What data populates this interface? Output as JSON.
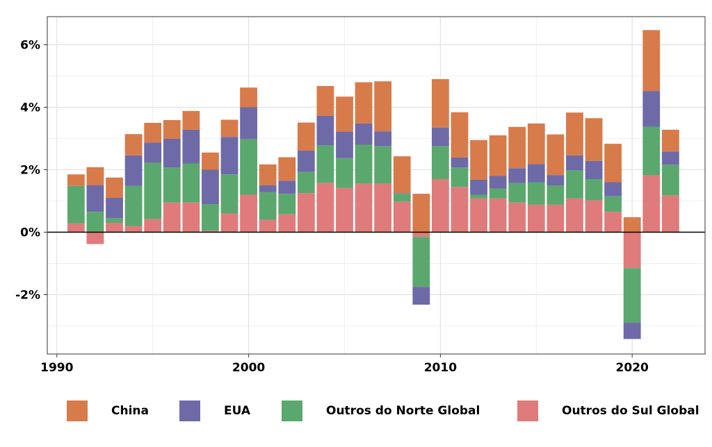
{
  "chart_data": {
    "type": "bar",
    "stacked": true,
    "title": "",
    "xlabel": "",
    "ylabel": "",
    "x": [
      1991,
      1992,
      1993,
      1994,
      1995,
      1996,
      1997,
      1998,
      1999,
      2000,
      2001,
      2002,
      2003,
      2004,
      2005,
      2006,
      2007,
      2008,
      2009,
      2010,
      2011,
      2012,
      2013,
      2014,
      2015,
      2016,
      2017,
      2018,
      2019,
      2020,
      2021,
      2022
    ],
    "x_ticks": [
      1990,
      2000,
      2010,
      2020
    ],
    "x_tick_labels": [
      "1990",
      "2000",
      "2010",
      "2020"
    ],
    "xlim": [
      1989.5,
      2023.8
    ],
    "y_ticks": [
      -2,
      0,
      2,
      4,
      6
    ],
    "y_tick_labels": [
      "-2%",
      "0%",
      "2%",
      "4%",
      "6%"
    ],
    "ylim": [
      -3.9,
      6.9
    ],
    "grid": true,
    "legend_position": "bottom",
    "series": [
      {
        "name": "Outros do Sul Global",
        "color": "#e07b7b",
        "values": [
          0.28,
          -0.38,
          0.3,
          0.2,
          0.42,
          0.95,
          0.95,
          0.05,
          0.6,
          1.2,
          0.4,
          0.58,
          1.25,
          1.58,
          1.42,
          1.55,
          1.55,
          0.98,
          -0.15,
          1.7,
          1.45,
          1.08,
          1.08,
          0.95,
          0.88,
          0.88,
          1.08,
          1.02,
          0.65,
          -1.15,
          1.82,
          1.18
        ]
      },
      {
        "name": "Outros do Norte Global",
        "color": "#5ba86e",
        "values": [
          1.2,
          0.65,
          0.15,
          1.28,
          1.8,
          1.12,
          1.25,
          0.85,
          1.25,
          1.78,
          0.88,
          0.65,
          0.68,
          1.2,
          0.95,
          1.25,
          1.2,
          0.25,
          -1.6,
          1.05,
          0.62,
          0.12,
          0.32,
          0.62,
          0.72,
          0.62,
          0.9,
          0.68,
          0.5,
          -1.75,
          1.55,
          0.98
        ]
      },
      {
        "name": "EUA",
        "color": "#6e6aa8",
        "values": [
          0.0,
          0.85,
          0.65,
          0.98,
          0.65,
          0.92,
          1.08,
          1.1,
          1.2,
          1.02,
          0.22,
          0.42,
          0.68,
          0.95,
          0.85,
          0.68,
          0.48,
          0.02,
          -0.57,
          0.6,
          0.32,
          0.48,
          0.4,
          0.48,
          0.58,
          0.33,
          0.48,
          0.58,
          0.45,
          -0.52,
          1.15,
          0.42
        ]
      },
      {
        "name": "China",
        "color": "#d87b4a",
        "values": [
          0.37,
          0.58,
          0.65,
          0.68,
          0.63,
          0.6,
          0.6,
          0.55,
          0.55,
          0.63,
          0.67,
          0.75,
          0.9,
          0.95,
          1.12,
          1.32,
          1.6,
          1.18,
          1.23,
          1.55,
          1.45,
          1.27,
          1.3,
          1.32,
          1.3,
          1.3,
          1.37,
          1.37,
          1.23,
          0.48,
          1.95,
          0.7
        ]
      }
    ]
  },
  "legend": {
    "items": [
      {
        "label": "China",
        "color": "#d87b4a"
      },
      {
        "label": "EUA",
        "color": "#6e6aa8"
      },
      {
        "label": "Outros do Norte Global",
        "color": "#5ba86e"
      },
      {
        "label": "Outros do Sul Global",
        "color": "#e07b7b"
      }
    ]
  }
}
